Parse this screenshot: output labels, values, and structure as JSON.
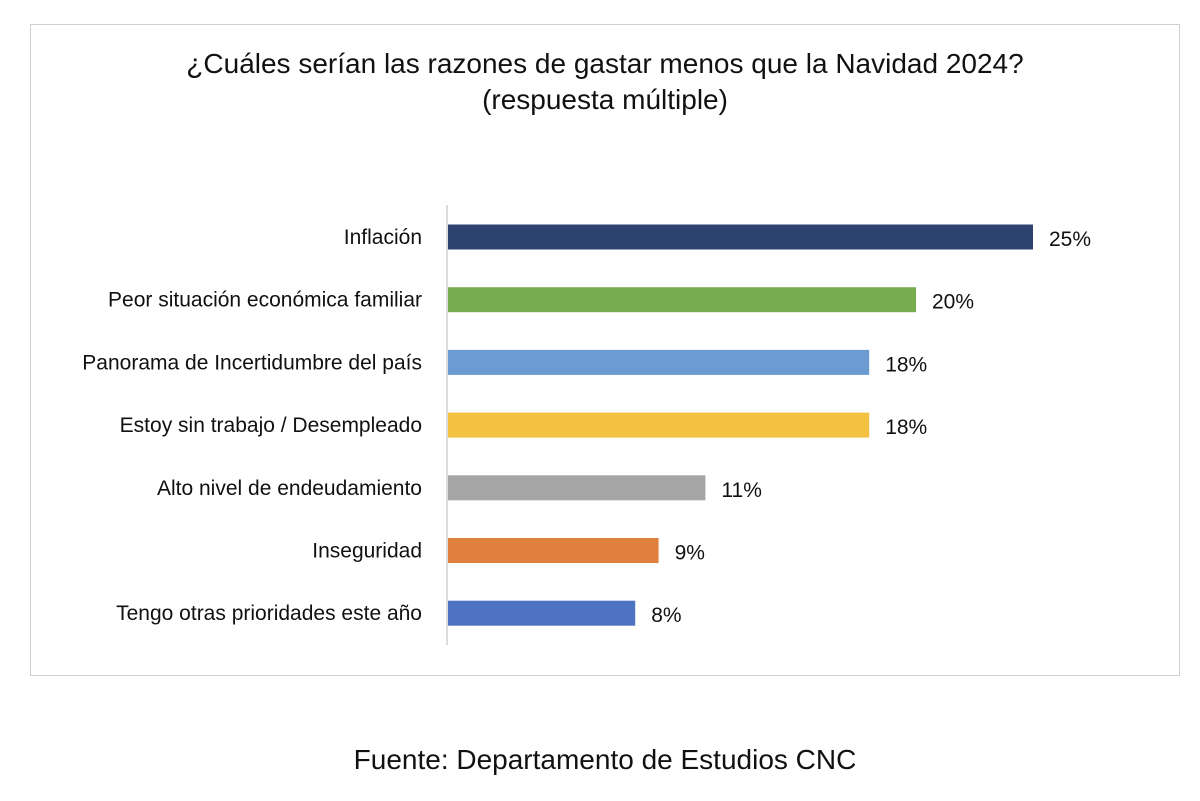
{
  "chart_data": {
    "type": "bar",
    "orientation": "horizontal",
    "title": "¿Cuáles serían las razones de gastar menos que la Navidad 2024?",
    "subtitle": "(respuesta múltiple)",
    "categories": [
      "Inflación",
      "Peor situación económica familiar",
      "Panorama de Incertidumbre del país",
      "Estoy sin trabajo / Desempleado",
      "Alto nivel de endeudamiento",
      "Inseguridad",
      "Tengo otras prioridades este año"
    ],
    "values": [
      25,
      20,
      18,
      18,
      11,
      9,
      8
    ],
    "value_labels": [
      "25%",
      "20%",
      "18%",
      "18%",
      "11%",
      "9%",
      "8%"
    ],
    "colors": [
      "#2e4270",
      "#78ad4f",
      "#6b9bd1",
      "#f2c240",
      "#a5a5a5",
      "#e0803f",
      "#4e73c2"
    ],
    "xlim": [
      0,
      25
    ],
    "grid": false,
    "legend": "none"
  },
  "source": "Fuente: Departamento de Estudios CNC"
}
